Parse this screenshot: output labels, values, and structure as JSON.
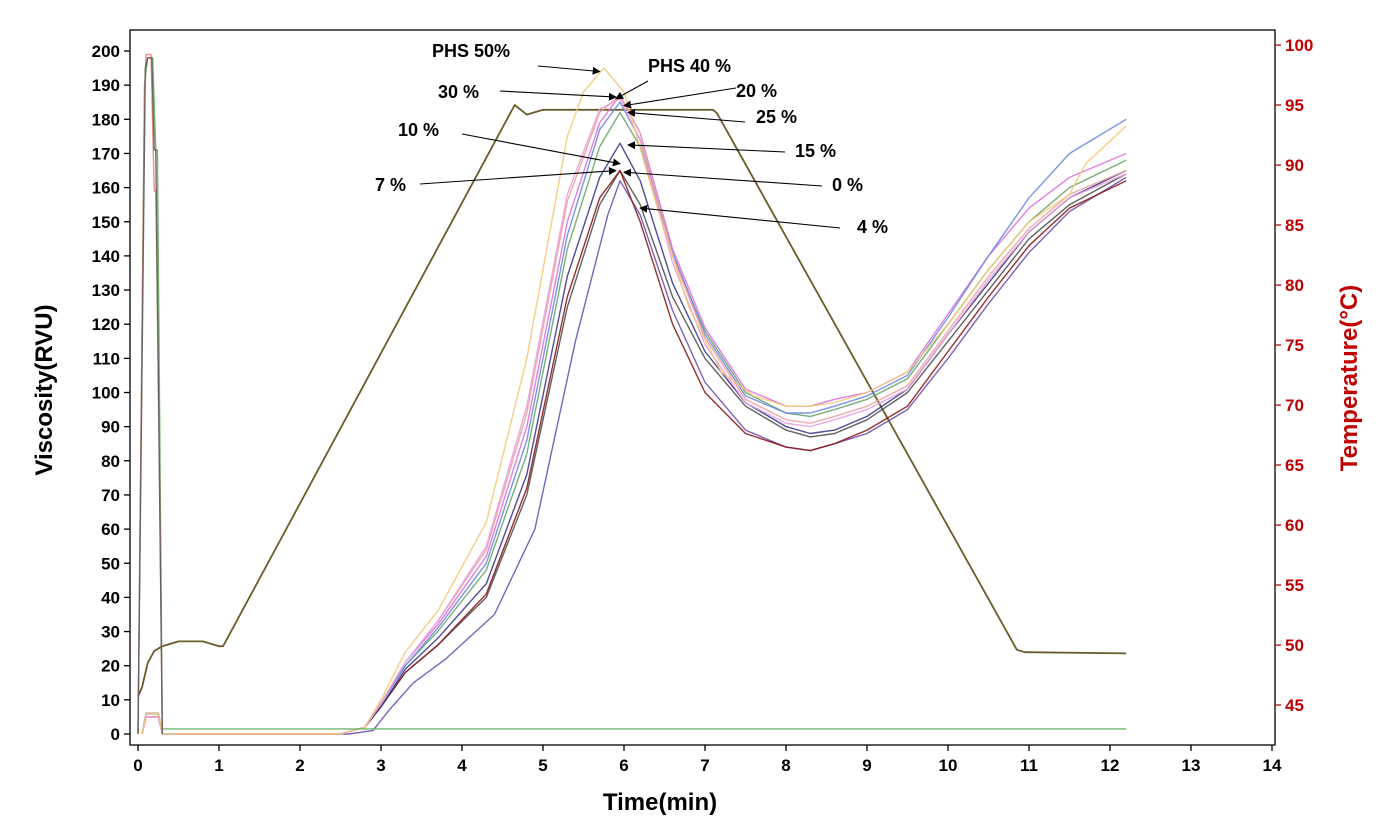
{
  "chart_data": {
    "type": "line",
    "xlabel": "Time(min)",
    "ylabel": "Viscosity(RVU)",
    "y2label": "Temperature(°C)",
    "xlim": [
      0,
      14
    ],
    "ylim": [
      0,
      200
    ],
    "y2lim": [
      42,
      100
    ],
    "x_ticks": [
      0,
      1,
      2,
      3,
      4,
      5,
      6,
      7,
      8,
      9,
      10,
      11,
      12,
      13,
      14
    ],
    "y_ticks": [
      0,
      10,
      20,
      30,
      40,
      50,
      60,
      70,
      80,
      90,
      100,
      110,
      120,
      130,
      140,
      150,
      160,
      170,
      180,
      190,
      200
    ],
    "y2_ticks": [
      45,
      50,
      55,
      60,
      65,
      70,
      75,
      80,
      85,
      90,
      95,
      100
    ],
    "colors": {
      "left_axis": "#000000",
      "right_axis": "#c00000"
    },
    "grid": false,
    "temperature_profile": {
      "x": [
        0.0,
        0.05,
        0.12,
        0.2,
        0.3,
        0.5,
        0.8,
        1.0,
        1.05,
        4.65,
        4.8,
        5.0,
        7.1,
        7.15,
        10.85,
        10.95,
        12.2
      ],
      "y": [
        45.7,
        46.5,
        48.5,
        49.5,
        49.9,
        50.3,
        50.3,
        49.9,
        49.9,
        95.0,
        94.2,
        94.6,
        94.6,
        94.3,
        49.6,
        49.4,
        49.3
      ]
    },
    "series": [
      {
        "name": "0 %",
        "color": "#505050",
        "x": [
          0.05,
          0.1,
          0.25,
          0.3,
          2.5,
          2.8,
          3.0,
          3.3,
          3.7,
          4.3,
          4.8,
          5.3,
          5.7,
          5.95,
          6.2,
          6.6,
          7.0,
          7.5,
          8.0,
          8.3,
          8.6,
          9.0,
          9.5,
          10.0,
          10.5,
          11.0,
          11.5,
          12.2
        ],
        "y": [
          0,
          6,
          6,
          0,
          0,
          2,
          8,
          18,
          26,
          40,
          70,
          125,
          155,
          165,
          155,
          128,
          110,
          96,
          89,
          87,
          88,
          92,
          100,
          115,
          130,
          145,
          155,
          164
        ]
      },
      {
        "name": "4 %",
        "color": "#7050b0",
        "x": [
          0.05,
          0.1,
          0.25,
          0.3,
          2.6,
          2.9,
          3.1,
          3.4,
          3.8,
          4.4,
          4.9,
          5.4,
          5.8,
          5.95,
          6.2,
          6.6,
          7.0,
          7.5,
          8.0,
          8.3,
          8.6,
          9.0,
          9.5,
          10.0,
          10.5,
          11.0,
          11.5,
          12.2
        ],
        "y": [
          0,
          6,
          6,
          0,
          0,
          1,
          7,
          15,
          22,
          35,
          60,
          115,
          152,
          162,
          152,
          124,
          103,
          89,
          84,
          83,
          85,
          88,
          95,
          110,
          126,
          141,
          153,
          163
        ]
      },
      {
        "name": "7 %",
        "color": "#8b1a1a",
        "x": [
          0.05,
          0.1,
          0.25,
          0.3,
          2.5,
          2.8,
          3.0,
          3.3,
          3.7,
          4.3,
          4.8,
          5.3,
          5.7,
          5.95,
          6.2,
          6.6,
          7.0,
          7.5,
          8.0,
          8.3,
          8.6,
          9.0,
          9.5,
          10.0,
          10.5,
          11.0,
          11.5,
          12.2
        ],
        "y": [
          0,
          5,
          5,
          0,
          0,
          2,
          8,
          18,
          26,
          41,
          72,
          128,
          157,
          165,
          150,
          120,
          100,
          88,
          84,
          83,
          85,
          89,
          96,
          112,
          128,
          143,
          154,
          162
        ]
      },
      {
        "name": "10 %",
        "color": "#3a3a8a",
        "x": [
          0.05,
          0.1,
          0.25,
          0.3,
          2.5,
          2.8,
          3.0,
          3.3,
          3.7,
          4.3,
          4.8,
          5.3,
          5.7,
          5.95,
          6.2,
          6.6,
          7.0,
          7.5,
          8.0,
          8.3,
          8.6,
          9.0,
          9.5,
          10.0,
          10.5,
          11.0,
          11.5,
          12.2
        ],
        "y": [
          0,
          6,
          6,
          0,
          0,
          2,
          8,
          19,
          28,
          44,
          76,
          134,
          163,
          173,
          162,
          132,
          112,
          97,
          90,
          88,
          89,
          93,
          101,
          117,
          132,
          147,
          157,
          165
        ]
      },
      {
        "name": "15 %",
        "color": "#6aa56a",
        "x": [
          0.05,
          0.1,
          0.25,
          0.3,
          2.5,
          2.8,
          3.0,
          3.3,
          3.7,
          4.3,
          4.8,
          5.3,
          5.7,
          5.95,
          6.2,
          6.6,
          7.0,
          7.5,
          8.0,
          8.3,
          8.6,
          9.0,
          9.5,
          10.0,
          10.5,
          11.0,
          11.5,
          12.2
        ],
        "y": [
          0,
          6,
          6,
          0,
          0,
          2,
          9,
          20,
          30,
          48,
          82,
          142,
          172,
          182,
          172,
          140,
          118,
          100,
          94,
          93,
          95,
          98,
          104,
          120,
          136,
          150,
          160,
          168
        ]
      },
      {
        "name": "20 %",
        "color": "#e070e0",
        "x": [
          0.05,
          0.1,
          0.25,
          0.3,
          2.5,
          2.8,
          3.0,
          3.3,
          3.7,
          4.3,
          4.8,
          5.3,
          5.7,
          5.95,
          6.2,
          6.6,
          7.0,
          7.5,
          8.0,
          8.3,
          8.6,
          9.0,
          9.5,
          10.0,
          10.5,
          11.0,
          11.5,
          12.2
        ],
        "y": [
          0,
          5,
          5,
          0,
          0,
          2,
          9,
          21,
          32,
          52,
          90,
          150,
          179,
          187,
          176,
          142,
          119,
          101,
          96,
          96,
          98,
          100,
          106,
          123,
          140,
          154,
          163,
          170
        ]
      },
      {
        "name": "25 %",
        "color": "#6a8ae0",
        "x": [
          0.05,
          0.1,
          0.25,
          0.3,
          2.5,
          2.8,
          3.0,
          3.3,
          3.7,
          4.3,
          4.8,
          5.3,
          5.7,
          5.95,
          6.2,
          6.6,
          7.0,
          7.5,
          8.0,
          8.3,
          8.6,
          9.0,
          9.5,
          10.0,
          10.5,
          11.0,
          11.5,
          12.2
        ],
        "y": [
          0,
          6,
          6,
          0,
          0,
          2,
          9,
          20,
          31,
          50,
          86,
          146,
          177,
          185,
          174,
          141,
          117,
          99,
          94,
          94,
          96,
          99,
          105,
          122,
          140,
          157,
          170,
          180
        ]
      },
      {
        "name": "30 %",
        "color": "#f0a0a0",
        "x": [
          0.05,
          0.1,
          0.25,
          0.3,
          2.5,
          2.8,
          3.0,
          3.3,
          3.7,
          4.3,
          4.8,
          5.3,
          5.7,
          5.95,
          6.2,
          6.6,
          7.0,
          7.5,
          8.0,
          8.3,
          8.6,
          9.0,
          9.5,
          10.0,
          10.5,
          11.0,
          11.5,
          12.2
        ],
        "y": [
          0,
          5,
          5,
          0,
          0,
          2,
          9,
          21,
          33,
          54,
          94,
          156,
          182,
          187,
          176,
          140,
          116,
          98,
          92,
          91,
          93,
          96,
          102,
          118,
          134,
          148,
          158,
          165
        ]
      },
      {
        "name": "PHS 40 %",
        "color": "#e8a0e0",
        "x": [
          0.05,
          0.1,
          0.25,
          0.3,
          2.5,
          2.8,
          3.0,
          3.3,
          3.7,
          4.3,
          4.8,
          5.3,
          5.7,
          5.95,
          6.2,
          6.6,
          7.0,
          7.5,
          8.0,
          8.3,
          8.6,
          9.0,
          9.5,
          10.0,
          10.5,
          11.0,
          11.5,
          12.2
        ],
        "y": [
          0,
          5,
          5,
          0,
          0,
          2,
          9,
          21,
          33,
          55,
          96,
          158,
          183,
          186,
          174,
          138,
          114,
          97,
          91,
          90,
          92,
          95,
          101,
          117,
          133,
          147,
          157,
          164
        ]
      },
      {
        "name": "PHS 50%",
        "color": "#f5c878",
        "x": [
          0.05,
          0.1,
          0.25,
          0.3,
          2.5,
          2.8,
          3.0,
          3.3,
          3.7,
          4.3,
          4.8,
          5.3,
          5.5,
          5.75,
          6.0,
          6.4,
          6.8,
          7.2,
          7.6,
          8.0,
          8.3,
          8.6,
          9.0,
          9.5,
          10.0,
          10.5,
          11.0,
          11.5,
          11.7,
          12.2
        ],
        "y": [
          0,
          6,
          6,
          0,
          0,
          2,
          10,
          24,
          36,
          62,
          110,
          175,
          188,
          195,
          188,
          155,
          125,
          106,
          99,
          96,
          96,
          97,
          100,
          106,
          120,
          136,
          150,
          158,
          167,
          178
        ]
      },
      {
        "name": "",
        "color": "#60b060",
        "x": [
          0.0,
          0.08,
          0.12,
          0.18,
          0.22,
          0.24,
          0.3,
          12.2
        ],
        "y": [
          0,
          190,
          198,
          198,
          171,
          171,
          1.5,
          1.5
        ]
      },
      {
        "name": "",
        "color": "#f08080",
        "x": [
          0.0,
          0.08,
          0.1,
          0.16,
          0.2,
          0.22,
          0.26,
          0.3
        ],
        "y": [
          0,
          188,
          199,
          199,
          159,
          159,
          88,
          1
        ]
      },
      {
        "name": "",
        "color": "#5c5c5c",
        "x": [
          0.0,
          0.09,
          0.12,
          0.17,
          0.2,
          0.22,
          0.3
        ],
        "y": [
          0,
          195,
          198,
          198,
          171,
          171,
          0
        ]
      }
    ],
    "annotations": [
      {
        "text": "PHS 50%",
        "target": [
          5.7,
          194
        ]
      },
      {
        "text": "PHS 40 %",
        "target": [
          5.9,
          186
        ]
      },
      {
        "text": "30 %",
        "target": [
          5.9,
          186.5
        ]
      },
      {
        "text": "20 %",
        "target": [
          6.0,
          184
        ]
      },
      {
        "text": "25 %",
        "target": [
          6.05,
          182
        ]
      },
      {
        "text": "10 %",
        "target": [
          5.95,
          167
        ]
      },
      {
        "text": "15 %",
        "target": [
          6.05,
          172.5
        ]
      },
      {
        "text": "7 %",
        "target": [
          5.9,
          165
        ]
      },
      {
        "text": "0 %",
        "target": [
          6.0,
          164.5
        ]
      },
      {
        "text": "4 %",
        "target": [
          6.2,
          154
        ]
      }
    ]
  }
}
